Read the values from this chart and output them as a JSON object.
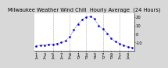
{
  "title": "Milwaukee Weather Wind Chill  Hourly Average  (24 Hours)",
  "hours": [
    1,
    2,
    3,
    4,
    5,
    6,
    7,
    8,
    9,
    10,
    11,
    12,
    13,
    14,
    15,
    16,
    17,
    18,
    19,
    20,
    21,
    22,
    23,
    24
  ],
  "wind_chill": [
    -14,
    -13,
    -13,
    -12,
    -12,
    -11,
    -10,
    -8,
    -3,
    5,
    12,
    17,
    20,
    21,
    18,
    10,
    6,
    1,
    -5,
    -9,
    -11,
    -13,
    -15,
    -16
  ],
  "line_color": "#0000cc",
  "bg_color": "#d8d8d8",
  "plot_bg_color": "#ffffff",
  "grid_color": "#888888",
  "title_color": "#000000",
  "ylabel_values": [
    20,
    10,
    0,
    -10
  ],
  "ylim": [
    -20,
    25
  ],
  "xlim": [
    0.5,
    24.5
  ],
  "xtick_positions": [
    1,
    3,
    5,
    7,
    9,
    11,
    13,
    15,
    17,
    19,
    21,
    23
  ],
  "xtick_labels_top": [
    "1",
    "3",
    "5",
    "7",
    "9",
    "1",
    "3",
    "5",
    "7",
    "9",
    "1",
    "3"
  ],
  "xtick_labels_bot": [
    "A",
    "A",
    "A",
    "A",
    "A",
    "P",
    "P",
    "P",
    "P",
    "P",
    "A",
    "A"
  ],
  "vgrid_positions": [
    5,
    9,
    13,
    17,
    21
  ],
  "marker_size": 1.8,
  "title_fontsize": 4.8,
  "tick_fontsize": 3.8,
  "linewidth": 0.5
}
